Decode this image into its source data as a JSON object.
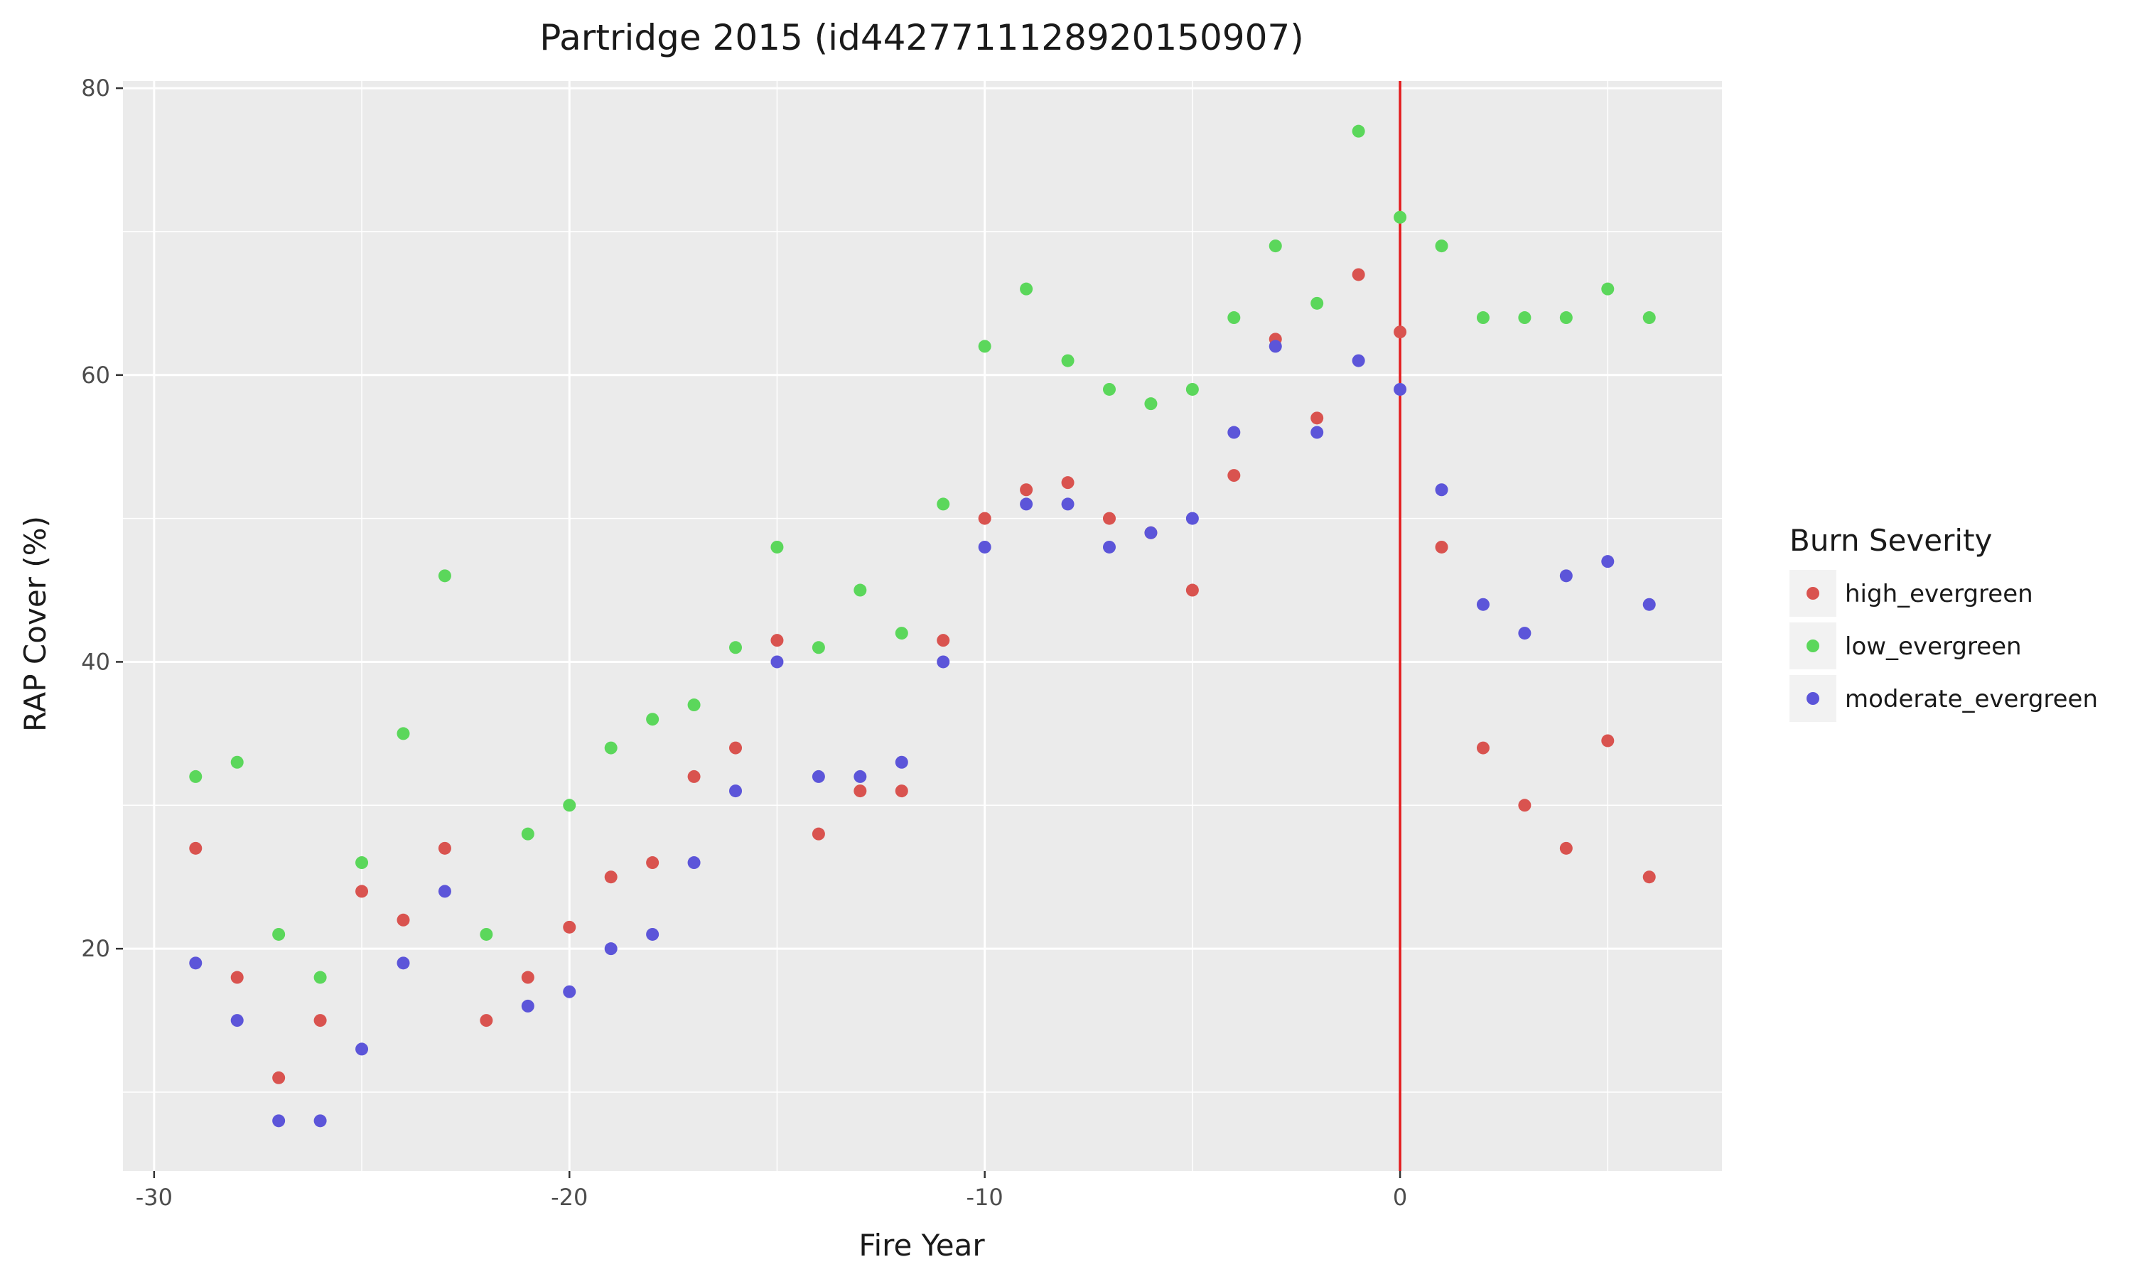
{
  "chart_data": {
    "type": "scatter",
    "title": "Partridge 2015 (id4427711128920150907)",
    "xlabel": "Fire Year",
    "ylabel": "RAP Cover (%)",
    "xlim": [
      -30.75,
      7.75
    ],
    "ylim": [
      4.5,
      80.5
    ],
    "x_ticks": [
      -30,
      -20,
      -10,
      0
    ],
    "y_ticks": [
      20,
      40,
      60,
      80
    ],
    "x_tick_labels": [
      "-30",
      "-20",
      "-10",
      "0"
    ],
    "y_tick_labels": [
      "20",
      "40",
      "60",
      "80"
    ],
    "grid": true,
    "legend_title": "Burn Severity",
    "legend_position": "right",
    "reference_line": {
      "x": 0,
      "color": "#e31a1c"
    },
    "x": [
      -29,
      -28,
      -27,
      -26,
      -25,
      -24,
      -23,
      -22,
      -21,
      -20,
      -19,
      -18,
      -17,
      -16,
      -15,
      -14,
      -13,
      -12,
      -11,
      -10,
      -9,
      -8,
      -7,
      -6,
      -5,
      -4,
      -3,
      -2,
      -1,
      0,
      1,
      2,
      3,
      4,
      5,
      6
    ],
    "series": [
      {
        "name": "high_evergreen",
        "color": "#F8766D",
        "values": [
          27,
          18,
          11,
          15,
          24,
          22,
          27,
          15,
          18,
          21.5,
          25,
          26,
          32,
          34,
          41.5,
          28,
          31,
          31,
          41.5,
          50,
          52,
          52.5,
          50,
          49,
          45,
          53,
          62.5,
          57,
          67,
          63,
          48,
          34,
          30,
          27,
          34.5,
          25
        ]
      },
      {
        "name": "low_evergreen",
        "color": "#00BA38",
        "values": [
          32,
          33,
          21,
          18,
          26,
          35,
          46,
          21,
          28,
          30,
          34,
          36,
          37,
          41,
          48,
          41,
          45,
          42,
          51,
          62,
          66,
          61,
          59,
          58,
          59,
          64,
          69,
          65,
          77,
          71,
          69,
          64,
          64,
          64,
          66,
          64
        ]
      },
      {
        "name": "moderate_evergreen",
        "color": "#619CFF",
        "values": [
          19,
          15,
          8,
          8,
          13,
          19,
          24,
          null,
          16,
          17,
          20,
          21,
          26,
          31,
          40,
          32,
          32,
          33,
          40,
          48,
          51,
          51,
          48,
          49,
          50,
          56,
          62,
          56,
          61,
          59,
          52,
          44,
          42,
          46,
          47,
          44
        ]
      }
    ]
  },
  "colors": {
    "panel_background": "#ebebeb",
    "grid_major": "#ffffff",
    "point_high": "#d9534f",
    "point_low": "#5bd75b",
    "point_moderate": "#5c55d9"
  }
}
